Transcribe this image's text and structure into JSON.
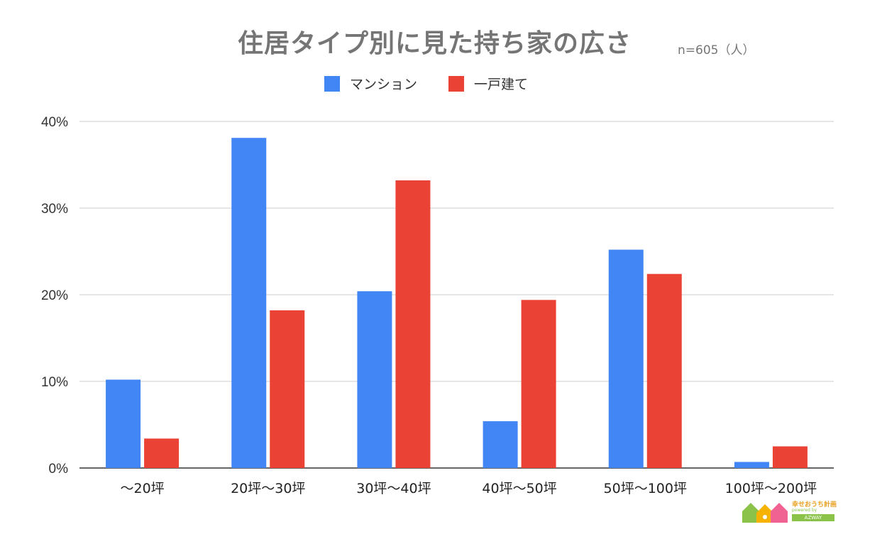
{
  "chart_data": {
    "type": "bar",
    "title": "住居タイプ別に見た持ち家の広さ",
    "sample_note": "n=605（人）",
    "categories": [
      "〜20坪",
      "20坪〜30坪",
      "30坪〜40坪",
      "40坪〜50坪",
      "50坪〜100坪",
      "100坪〜200坪"
    ],
    "series": [
      {
        "name": "マンション",
        "color": "#4285f4",
        "values": [
          10.2,
          38.1,
          20.4,
          5.4,
          25.2,
          0.7
        ]
      },
      {
        "name": "一戸建て",
        "color": "#ea4335",
        "values": [
          3.4,
          18.2,
          33.2,
          19.4,
          22.4,
          2.5
        ]
      }
    ],
    "ylim": [
      0,
      40
    ],
    "yticks": [
      0,
      10,
      20,
      30,
      40
    ],
    "ytick_labels": [
      "0%",
      "10%",
      "20%",
      "30%",
      "40%"
    ],
    "xlabel": "",
    "ylabel": "",
    "grid": true,
    "legend_position": "top-center"
  },
  "logo": {
    "title": "幸せおうち計画",
    "sub": "powered by",
    "brand": "AZWAY"
  }
}
